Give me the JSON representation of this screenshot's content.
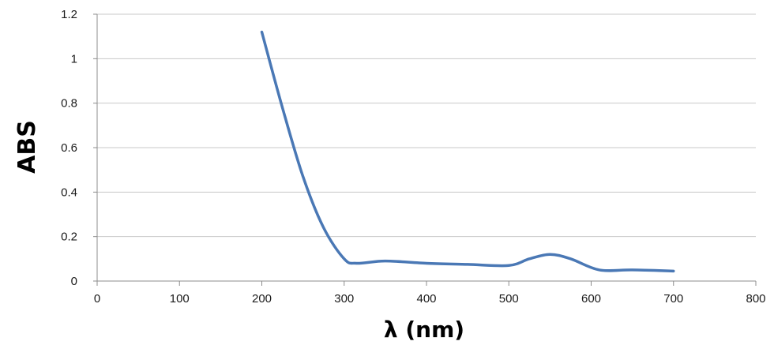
{
  "chart_data": {
    "type": "line",
    "title": "",
    "xlabel": "λ (nm)",
    "ylabel": "ABS",
    "xlim": [
      0,
      800
    ],
    "ylim": [
      0,
      1.2
    ],
    "x_ticks": [
      "0",
      "100",
      "200",
      "300",
      "400",
      "500",
      "600",
      "700",
      "800"
    ],
    "y_ticks": [
      "0",
      "0.2",
      "0.4",
      "0.6",
      "0.8",
      "1",
      "1.2"
    ],
    "grid": "horizontal",
    "legend": "none",
    "colors": {
      "series": "#4a78b5",
      "grid": "#c8c8c8",
      "axis": "#8c8c8c"
    },
    "series": [
      {
        "x": [
          200,
          225,
          250,
          275,
          300,
          315,
          350,
          400,
          450,
          500,
          525,
          550,
          575,
          610,
          650,
          700
        ],
        "y": [
          1.12,
          0.78,
          0.47,
          0.24,
          0.1,
          0.08,
          0.09,
          0.08,
          0.075,
          0.07,
          0.1,
          0.12,
          0.1,
          0.05,
          0.05,
          0.045
        ]
      }
    ]
  }
}
